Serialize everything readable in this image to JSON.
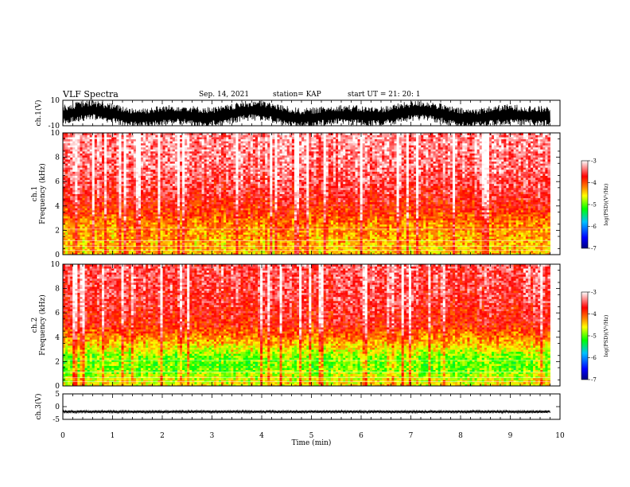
{
  "header": {
    "title": "VLF Spectra",
    "date": "Sep. 14, 2021",
    "station": "station= KAP",
    "start": "start  UT  =   21: 20: 1"
  },
  "chart_data": [
    {
      "type": "line",
      "panel": "ch1-waveform",
      "ylabel": "ch.1(V)",
      "ylim": [
        -10,
        10
      ],
      "y_ticks": [
        "10",
        "-10"
      ],
      "xlim": [
        0,
        10
      ],
      "data_extent_x": [
        0,
        9.8
      ],
      "description_values": {
        "approx_mean": 0,
        "approx_amplitude": 8
      }
    },
    {
      "type": "heatmap",
      "panel": "ch1-spectrogram",
      "ylabel": "ch.1\nFrequency (kHz)",
      "ylim": [
        0,
        10
      ],
      "y_ticks": [
        "0",
        "2",
        "4",
        "6",
        "8",
        "10"
      ],
      "xlim": [
        0,
        10
      ],
      "data_extent_x": [
        0,
        9.8
      ],
      "colorbar": {
        "label": "log(PSD)(V²/Hz)",
        "range": [
          -7,
          -3
        ],
        "ticks": [
          "-3",
          "-4",
          "-5",
          "-6",
          "-7"
        ],
        "colors": [
          "#000080",
          "#0000ff",
          "#00c0ff",
          "#00ff00",
          "#ffff00",
          "#ff8000",
          "#ff0000",
          "#ffffff"
        ]
      },
      "profile": [
        {
          "freq_khz": 0.4,
          "log_psd": -4.4
        },
        {
          "freq_khz": 1.5,
          "log_psd": -4.3
        },
        {
          "freq_khz": 2.5,
          "log_psd": -4.2
        },
        {
          "freq_khz": 3.5,
          "log_psd": -3.9
        },
        {
          "freq_khz": 5.0,
          "log_psd": -3.6
        },
        {
          "freq_khz": 7.0,
          "log_psd": -3.4
        },
        {
          "freq_khz": 9.0,
          "log_psd": -3.3
        }
      ]
    },
    {
      "type": "heatmap",
      "panel": "ch2-spectrogram",
      "ylabel": "ch.2\nFrequency (kHz)",
      "ylim": [
        0,
        10
      ],
      "y_ticks": [
        "0",
        "2",
        "4",
        "6",
        "8",
        "10"
      ],
      "xlim": [
        0,
        10
      ],
      "data_extent_x": [
        0,
        9.8
      ],
      "colorbar": {
        "label": "log(PSD)(V²/Hz)",
        "range": [
          -7,
          -3
        ],
        "ticks": [
          "-3",
          "-4",
          "-5",
          "-6",
          "-7"
        ],
        "colors": [
          "#000080",
          "#0000ff",
          "#00c0ff",
          "#00ff00",
          "#ffff00",
          "#ff8000",
          "#ff0000",
          "#ffffff"
        ]
      },
      "profile": [
        {
          "freq_khz": 0.4,
          "log_psd": -4.6
        },
        {
          "freq_khz": 1.5,
          "log_psd": -5.0
        },
        {
          "freq_khz": 2.5,
          "log_psd": -4.9
        },
        {
          "freq_khz": 3.5,
          "log_psd": -4.4
        },
        {
          "freq_khz": 5.0,
          "log_psd": -3.8
        },
        {
          "freq_khz": 7.0,
          "log_psd": -3.6
        },
        {
          "freq_khz": 9.0,
          "log_psd": -3.5
        }
      ]
    },
    {
      "type": "line",
      "panel": "ch3-waveform",
      "ylabel": "ch.3(V)",
      "ylim": [
        -5,
        5
      ],
      "y_ticks": [
        "5",
        "0",
        "-5"
      ],
      "xlim": [
        0,
        10
      ],
      "data_extent_x": [
        0,
        9.8
      ],
      "description_values": {
        "approx_mean": -2.0,
        "approx_amplitude": 0.5
      }
    }
  ],
  "xaxis": {
    "label": "Time (min)",
    "ticks": [
      "0",
      "1",
      "2",
      "3",
      "4",
      "5",
      "6",
      "7",
      "8",
      "9",
      "10"
    ]
  }
}
